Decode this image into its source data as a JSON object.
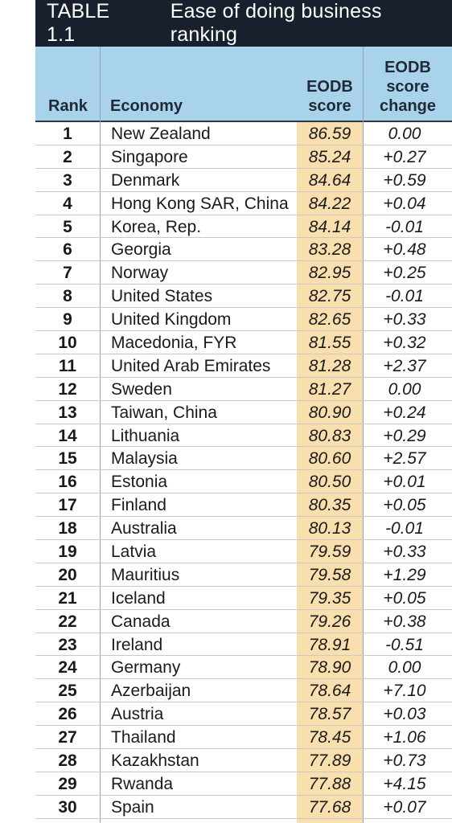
{
  "title": {
    "label": "TABLE 1.1",
    "text": "Ease of doing business ranking"
  },
  "columns": {
    "rank": "Rank",
    "economy": "Economy",
    "score": [
      "EODB",
      "score"
    ],
    "change": [
      "EODB",
      "score",
      "change"
    ]
  },
  "colors": {
    "title_bg": "#17202c",
    "header_bg": "#a9d3ea",
    "score_bg": "#f9dfae"
  },
  "rows": [
    {
      "rank": "1",
      "economy": "New Zealand",
      "score": "86.59",
      "change": "0.00"
    },
    {
      "rank": "2",
      "economy": "Singapore",
      "score": "85.24",
      "change": "+0.27"
    },
    {
      "rank": "3",
      "economy": "Denmark",
      "score": "84.64",
      "change": "+0.59"
    },
    {
      "rank": "4",
      "economy": "Hong Kong SAR, China",
      "score": "84.22",
      "change": "+0.04"
    },
    {
      "rank": "5",
      "economy": "Korea, Rep.",
      "score": "84.14",
      "change": "-0.01"
    },
    {
      "rank": "6",
      "economy": "Georgia",
      "score": "83.28",
      "change": "+0.48"
    },
    {
      "rank": "7",
      "economy": "Norway",
      "score": "82.95",
      "change": "+0.25"
    },
    {
      "rank": "8",
      "economy": "United States",
      "score": "82.75",
      "change": "-0.01"
    },
    {
      "rank": "9",
      "economy": "United Kingdom",
      "score": "82.65",
      "change": "+0.33"
    },
    {
      "rank": "10",
      "economy": "Macedonia, FYR",
      "score": "81.55",
      "change": "+0.32"
    },
    {
      "rank": "11",
      "economy": "United Arab Emirates",
      "score": "81.28",
      "change": "+2.37"
    },
    {
      "rank": "12",
      "economy": "Sweden",
      "score": "81.27",
      "change": "0.00"
    },
    {
      "rank": "13",
      "economy": "Taiwan, China",
      "score": "80.90",
      "change": "+0.24"
    },
    {
      "rank": "14",
      "economy": "Lithuania",
      "score": "80.83",
      "change": "+0.29"
    },
    {
      "rank": "15",
      "economy": "Malaysia",
      "score": "80.60",
      "change": "+2.57"
    },
    {
      "rank": "16",
      "economy": "Estonia",
      "score": "80.50",
      "change": "+0.01"
    },
    {
      "rank": "17",
      "economy": "Finland",
      "score": "80.35",
      "change": "+0.05"
    },
    {
      "rank": "18",
      "economy": "Australia",
      "score": "80.13",
      "change": "-0.01"
    },
    {
      "rank": "19",
      "economy": "Latvia",
      "score": "79.59",
      "change": "+0.33"
    },
    {
      "rank": "20",
      "economy": "Mauritius",
      "score": "79.58",
      "change": "+1.29"
    },
    {
      "rank": "21",
      "economy": "Iceland",
      "score": "79.35",
      "change": "+0.05"
    },
    {
      "rank": "22",
      "economy": "Canada",
      "score": "79.26",
      "change": "+0.38"
    },
    {
      "rank": "23",
      "economy": "Ireland",
      "score": "78.91",
      "change": "-0.51"
    },
    {
      "rank": "24",
      "economy": "Germany",
      "score": "78.90",
      "change": "0.00"
    },
    {
      "rank": "25",
      "economy": "Azerbaijan",
      "score": "78.64",
      "change": "+7.10"
    },
    {
      "rank": "26",
      "economy": "Austria",
      "score": "78.57",
      "change": "+0.03"
    },
    {
      "rank": "27",
      "economy": "Thailand",
      "score": "78.45",
      "change": "+1.06"
    },
    {
      "rank": "28",
      "economy": "Kazakhstan",
      "score": "77.89",
      "change": "+0.73"
    },
    {
      "rank": "29",
      "economy": "Rwanda",
      "score": "77.88",
      "change": "+4.15"
    },
    {
      "rank": "30",
      "economy": "Spain",
      "score": "77.68",
      "change": "+0.07"
    }
  ]
}
